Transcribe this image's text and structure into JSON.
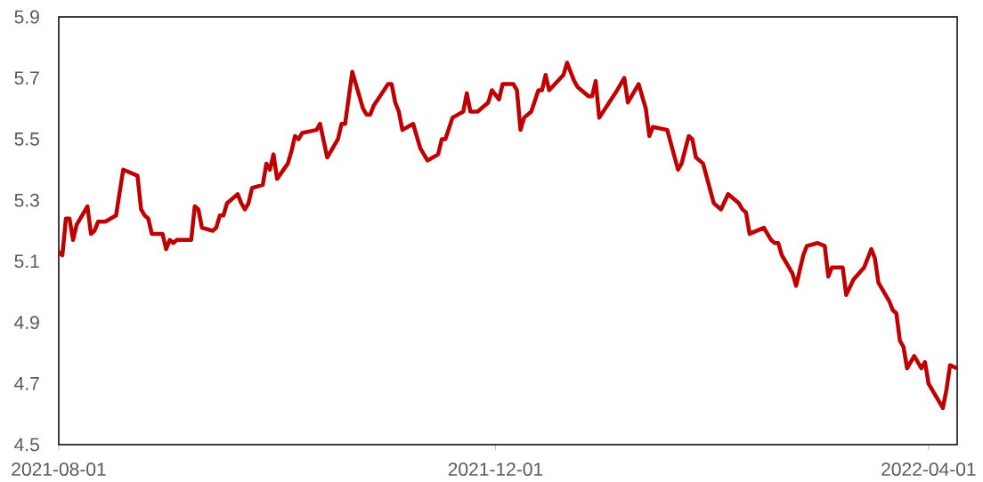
{
  "chart_data": {
    "type": "line",
    "color": "#c00000",
    "x": [
      "2021-08-01",
      "2021-08-02",
      "2021-08-03",
      "2021-08-04",
      "2021-08-05",
      "2021-08-06",
      "2021-08-09",
      "2021-08-10",
      "2021-08-11",
      "2021-08-12",
      "2021-08-14",
      "2021-08-17",
      "2021-08-19",
      "2021-08-23",
      "2021-08-24",
      "2021-08-25",
      "2021-08-26",
      "2021-08-27",
      "2021-08-30",
      "2021-08-31",
      "2021-09-01",
      "2021-09-02",
      "2021-09-03",
      "2021-09-07",
      "2021-09-08",
      "2021-09-09",
      "2021-09-10",
      "2021-09-13",
      "2021-09-14",
      "2021-09-15",
      "2021-09-16",
      "2021-09-17",
      "2021-09-20",
      "2021-09-21",
      "2021-09-22",
      "2021-09-23",
      "2021-09-24",
      "2021-09-27",
      "2021-09-28",
      "2021-09-29",
      "2021-09-30",
      "2021-10-01",
      "2021-10-04",
      "2021-10-05",
      "2021-10-06",
      "2021-10-07",
      "2021-10-08",
      "2021-10-12",
      "2021-10-13",
      "2021-10-15",
      "2021-10-18",
      "2021-10-19",
      "2021-10-20",
      "2021-10-22",
      "2021-10-25",
      "2021-10-26",
      "2021-10-27",
      "2021-10-28",
      "2021-11-01",
      "2021-11-02",
      "2021-11-03",
      "2021-11-04",
      "2021-11-05",
      "2021-11-08",
      "2021-11-10",
      "2021-11-12",
      "2021-11-15",
      "2021-11-16",
      "2021-11-17",
      "2021-11-19",
      "2021-11-22",
      "2021-11-23",
      "2021-11-24",
      "2021-11-26",
      "2021-11-29",
      "2021-11-30",
      "2021-12-02",
      "2021-12-03",
      "2021-12-06",
      "2021-12-07",
      "2021-12-08",
      "2021-12-09",
      "2021-12-11",
      "2021-12-13",
      "2021-12-14",
      "2021-12-15",
      "2021-12-16",
      "2021-12-20",
      "2021-12-21",
      "2021-12-23",
      "2021-12-24",
      "2021-12-27",
      "2021-12-28",
      "2021-12-29",
      "2021-12-30",
      "2022-01-04",
      "2022-01-06",
      "2022-01-07",
      "2022-01-10",
      "2022-01-12",
      "2022-01-13",
      "2022-01-14",
      "2022-01-18",
      "2022-01-21",
      "2022-01-22",
      "2022-01-24",
      "2022-01-25",
      "2022-01-26",
      "2022-01-28",
      "2022-01-31",
      "2022-02-02",
      "2022-02-04",
      "2022-02-07",
      "2022-02-08",
      "2022-02-09",
      "2022-02-10",
      "2022-02-14",
      "2022-02-16",
      "2022-02-17",
      "2022-02-18",
      "2022-02-19",
      "2022-02-22",
      "2022-02-23",
      "2022-02-25",
      "2022-02-26",
      "2022-03-01",
      "2022-03-03",
      "2022-03-04",
      "2022-03-05",
      "2022-03-08",
      "2022-03-09",
      "2022-03-11",
      "2022-03-14",
      "2022-03-16",
      "2022-03-17",
      "2022-03-18",
      "2022-03-21",
      "2022-03-22",
      "2022-03-23",
      "2022-03-24",
      "2022-03-25",
      "2022-03-26",
      "2022-03-28",
      "2022-03-30",
      "2022-03-31",
      "2022-04-01",
      "2022-04-05",
      "2022-04-06",
      "2022-04-07",
      "2022-04-09"
    ],
    "values": [
      5.13,
      5.12,
      5.24,
      5.24,
      5.17,
      5.22,
      5.28,
      5.19,
      5.2,
      5.23,
      5.23,
      5.25,
      5.4,
      5.38,
      5.27,
      5.25,
      5.24,
      5.19,
      5.19,
      5.14,
      5.17,
      5.16,
      5.17,
      5.17,
      5.28,
      5.27,
      5.21,
      5.2,
      5.21,
      5.25,
      5.25,
      5.29,
      5.32,
      5.29,
      5.27,
      5.29,
      5.34,
      5.35,
      5.42,
      5.4,
      5.45,
      5.37,
      5.42,
      5.46,
      5.51,
      5.5,
      5.52,
      5.53,
      5.55,
      5.44,
      5.5,
      5.55,
      5.55,
      5.72,
      5.6,
      5.58,
      5.58,
      5.61,
      5.68,
      5.68,
      5.62,
      5.59,
      5.53,
      5.55,
      5.47,
      5.43,
      5.45,
      5.5,
      5.5,
      5.57,
      5.59,
      5.65,
      5.59,
      5.59,
      5.62,
      5.66,
      5.63,
      5.68,
      5.68,
      5.66,
      5.53,
      5.57,
      5.59,
      5.66,
      5.66,
      5.71,
      5.66,
      5.71,
      5.75,
      5.69,
      5.67,
      5.64,
      5.64,
      5.69,
      5.57,
      5.66,
      5.7,
      5.62,
      5.68,
      5.6,
      5.51,
      5.54,
      5.53,
      5.4,
      5.42,
      5.51,
      5.5,
      5.44,
      5.42,
      5.29,
      5.27,
      5.32,
      5.29,
      5.27,
      5.26,
      5.19,
      5.21,
      5.17,
      5.16,
      5.16,
      5.12,
      5.06,
      5.02,
      5.12,
      5.15,
      5.16,
      5.15,
      5.05,
      5.08,
      5.08,
      4.99,
      5.04,
      5.08,
      5.14,
      5.11,
      5.03,
      4.97,
      4.94,
      4.93,
      4.84,
      4.82,
      4.75,
      4.79,
      4.75,
      4.77,
      4.7,
      4.62,
      4.68,
      4.76,
      4.75
    ],
    "xlim": [
      "2021-08-01",
      "2022-04-09"
    ],
    "xticks": [
      "2021-08-01",
      "2021-12-01",
      "2022-04-01"
    ],
    "ylim": [
      4.5,
      5.9
    ],
    "yticks": [
      4.5,
      4.7,
      4.9,
      5.1,
      5.3,
      5.5,
      5.7,
      5.9
    ]
  }
}
